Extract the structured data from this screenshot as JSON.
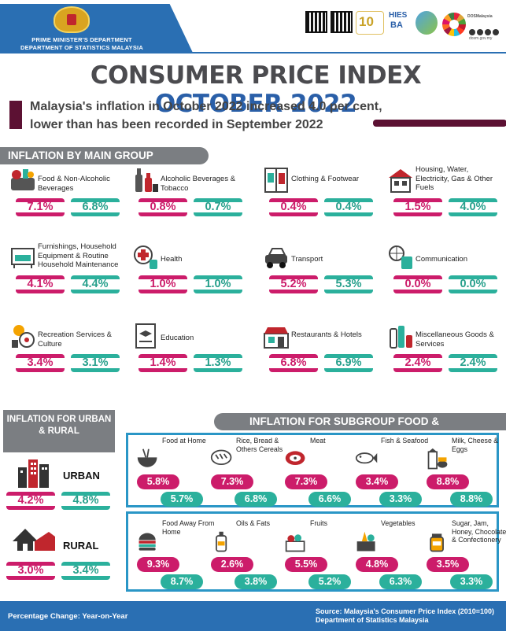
{
  "header": {
    "org_line1": "PRIME MINISTER'S DEPARTMENT",
    "org_line2": "DEPARTMENT OF STATISTICS MALAYSIA",
    "logo_text_10": "10",
    "logo_text_hies": "HIES",
    "logo_text_ba": "BA",
    "logo_text_dosm": "DOSMalaysia",
    "logo_url": "dosm.gov.my"
  },
  "title": {
    "part1": "CONSUMER PRICE INDEX",
    "part2": "OCTOBER 2022"
  },
  "subtitle": {
    "line1": "Malaysia's inflation in October 2022 increased 4.0 per cent,",
    "line2": "lower than has been recorded in September 2022"
  },
  "main_group": {
    "heading": "INFLATION BY MAIN GROUP",
    "items": [
      {
        "name": "Food & Non-Alcoholic Beverages",
        "pink": "7.1%",
        "teal": "6.8%",
        "icon": "grocery-basket-icon"
      },
      {
        "name": "Alcoholic Beverages & Tobacco",
        "pink": "0.8%",
        "teal": "0.7%",
        "icon": "bottles-icon"
      },
      {
        "name": "Clothing & Footwear",
        "pink": "0.4%",
        "teal": "0.4%",
        "icon": "wardrobe-icon"
      },
      {
        "name": "Housing, Water, Electricity, Gas & Other Fuels",
        "pink": "1.5%",
        "teal": "4.0%",
        "icon": "house-icon"
      },
      {
        "name": "Furnishings, Household Equipment & Routine Household Maintenance",
        "pink": "4.1%",
        "teal": "4.4%",
        "icon": "sofa-icon"
      },
      {
        "name": "Health",
        "pink": "1.0%",
        "teal": "1.0%",
        "icon": "medical-icon"
      },
      {
        "name": "Transport",
        "pink": "5.2%",
        "teal": "5.3%",
        "icon": "car-icon"
      },
      {
        "name": "Communication",
        "pink": "0.0%",
        "teal": "0.0%",
        "icon": "communication-icon"
      },
      {
        "name": "Recreation Services & Culture",
        "pink": "3.4%",
        "teal": "3.1%",
        "icon": "recreation-icon"
      },
      {
        "name": "Education",
        "pink": "1.4%",
        "teal": "1.3%",
        "icon": "education-icon"
      },
      {
        "name": "Restaurants & Hotels",
        "pink": "6.8%",
        "teal": "6.9%",
        "icon": "restaurant-icon"
      },
      {
        "name": "Miscellaneous Goods & Services",
        "pink": "2.4%",
        "teal": "2.4%",
        "icon": "cosmetics-icon"
      }
    ]
  },
  "urban_rural": {
    "heading": "INFLATION FOR URBAN & RURAL",
    "urban": {
      "label": "URBAN",
      "pink": "4.2%",
      "teal": "4.8%",
      "icon": "buildings-icon"
    },
    "rural": {
      "label": "RURAL",
      "pink": "3.0%",
      "teal": "3.4%",
      "icon": "rural-house-icon"
    }
  },
  "subgroup": {
    "heading": "INFLATION FOR SUBGROUP FOOD & BEVERAGES",
    "row1": [
      {
        "name": "Food at Home",
        "pink": "5.8%",
        "teal": "5.7%",
        "icon": "food-bowl-icon"
      },
      {
        "name": "Rice, Bread & Others Cereals",
        "pink": "7.3%",
        "teal": "6.8%",
        "icon": "bread-icon"
      },
      {
        "name": "Meat",
        "pink": "7.3%",
        "teal": "6.6%",
        "icon": "meat-icon"
      },
      {
        "name": "Fish & Seafood",
        "pink": "3.4%",
        "teal": "3.3%",
        "icon": "fish-icon"
      },
      {
        "name": "Milk, Cheese & Eggs",
        "pink": "8.8%",
        "teal": "8.8%",
        "icon": "milk-icon"
      }
    ],
    "row2": [
      {
        "name": "Food Away From Home",
        "pink": "9.3%",
        "teal": "8.7%",
        "icon": "burger-icon"
      },
      {
        "name": "Oils & Fats",
        "pink": "2.6%",
        "teal": "3.8%",
        "icon": "oil-bottle-icon"
      },
      {
        "name": "Fruits",
        "pink": "5.5%",
        "teal": "5.2%",
        "icon": "fruit-basket-icon"
      },
      {
        "name": "Vegetables",
        "pink": "4.8%",
        "teal": "6.3%",
        "icon": "vegetables-icon"
      },
      {
        "name": "Sugar, Jam, Honey, Chocolate & Confectionery",
        "pink": "3.5%",
        "teal": "3.3%",
        "icon": "honey-jar-icon"
      }
    ]
  },
  "footer": {
    "left": "Percentage Change: Year-on-Year",
    "right_line1": "Source: Malaysia's Consumer Price Index (2010=100)",
    "right_line2": "Department of Statistics Malaysia"
  },
  "colors": {
    "pink": "#cc1c6a",
    "teal": "#2bb09c",
    "blue": "#2a6fb3",
    "grey": "#7b7e82",
    "maroon": "#5c1133"
  }
}
